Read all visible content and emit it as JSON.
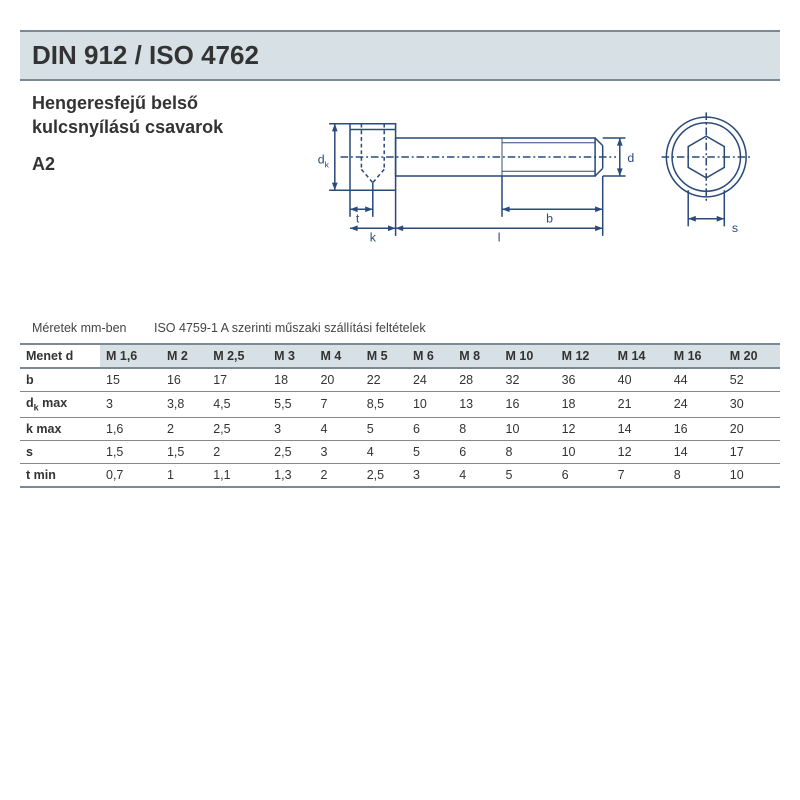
{
  "header": {
    "standard": "DIN 912 / ISO 4762",
    "description_line1": "Hengeresfejű belső",
    "description_line2": "kulcsnyílású csavarok",
    "grade": "A2"
  },
  "captions": {
    "units": "Méretek mm-ben",
    "spec": "ISO 4759-1 A szerinti műszaki szállítási feltételek"
  },
  "diagram": {
    "stroke": "#2a4a7a",
    "labels": {
      "dk": "d",
      "dk_sub": "k",
      "t": "t",
      "k": "k",
      "l": "l",
      "b": "b",
      "d": "d",
      "s": "s"
    }
  },
  "table": {
    "header_label": "Menet d",
    "columns": [
      "M 1,6",
      "M 2",
      "M 2,5",
      "M 3",
      "M 4",
      "M 5",
      "M 6",
      "M 8",
      "M 10",
      "M 12",
      "M 14",
      "M 16",
      "M 20"
    ],
    "rows": [
      {
        "label": "b",
        "values": [
          "15",
          "16",
          "17",
          "18",
          "20",
          "22",
          "24",
          "28",
          "32",
          "36",
          "40",
          "44",
          "52"
        ]
      },
      {
        "label": "d_k max",
        "label_html": "d<span class='sub'>k</span> max",
        "values": [
          "3",
          "3,8",
          "4,5",
          "5,5",
          "7",
          "8,5",
          "10",
          "13",
          "16",
          "18",
          "21",
          "24",
          "30"
        ]
      },
      {
        "label": "k max",
        "values": [
          "1,6",
          "2",
          "2,5",
          "3",
          "4",
          "5",
          "6",
          "8",
          "10",
          "12",
          "14",
          "16",
          "20"
        ]
      },
      {
        "label": "s",
        "values": [
          "1,5",
          "1,5",
          "2",
          "2,5",
          "3",
          "4",
          "5",
          "6",
          "8",
          "10",
          "12",
          "14",
          "17"
        ]
      },
      {
        "label": "t min",
        "values": [
          "0,7",
          "1",
          "1,1",
          "1,3",
          "2",
          "2,5",
          "3",
          "4",
          "5",
          "6",
          "7",
          "8",
          "10"
        ]
      }
    ],
    "colors": {
      "header_bg": "#d7e0e5",
      "border": "#7a8a94",
      "cell_border": "#888888"
    }
  }
}
